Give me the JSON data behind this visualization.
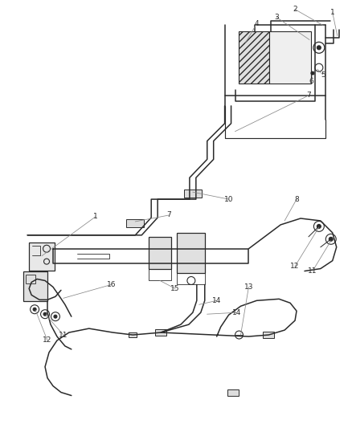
{
  "background_color": "#ffffff",
  "line_color": "#2a2a2a",
  "label_color": "#2a2a2a",
  "leader_color": "#888888",
  "fig_width": 4.38,
  "fig_height": 5.33,
  "dpi": 100
}
